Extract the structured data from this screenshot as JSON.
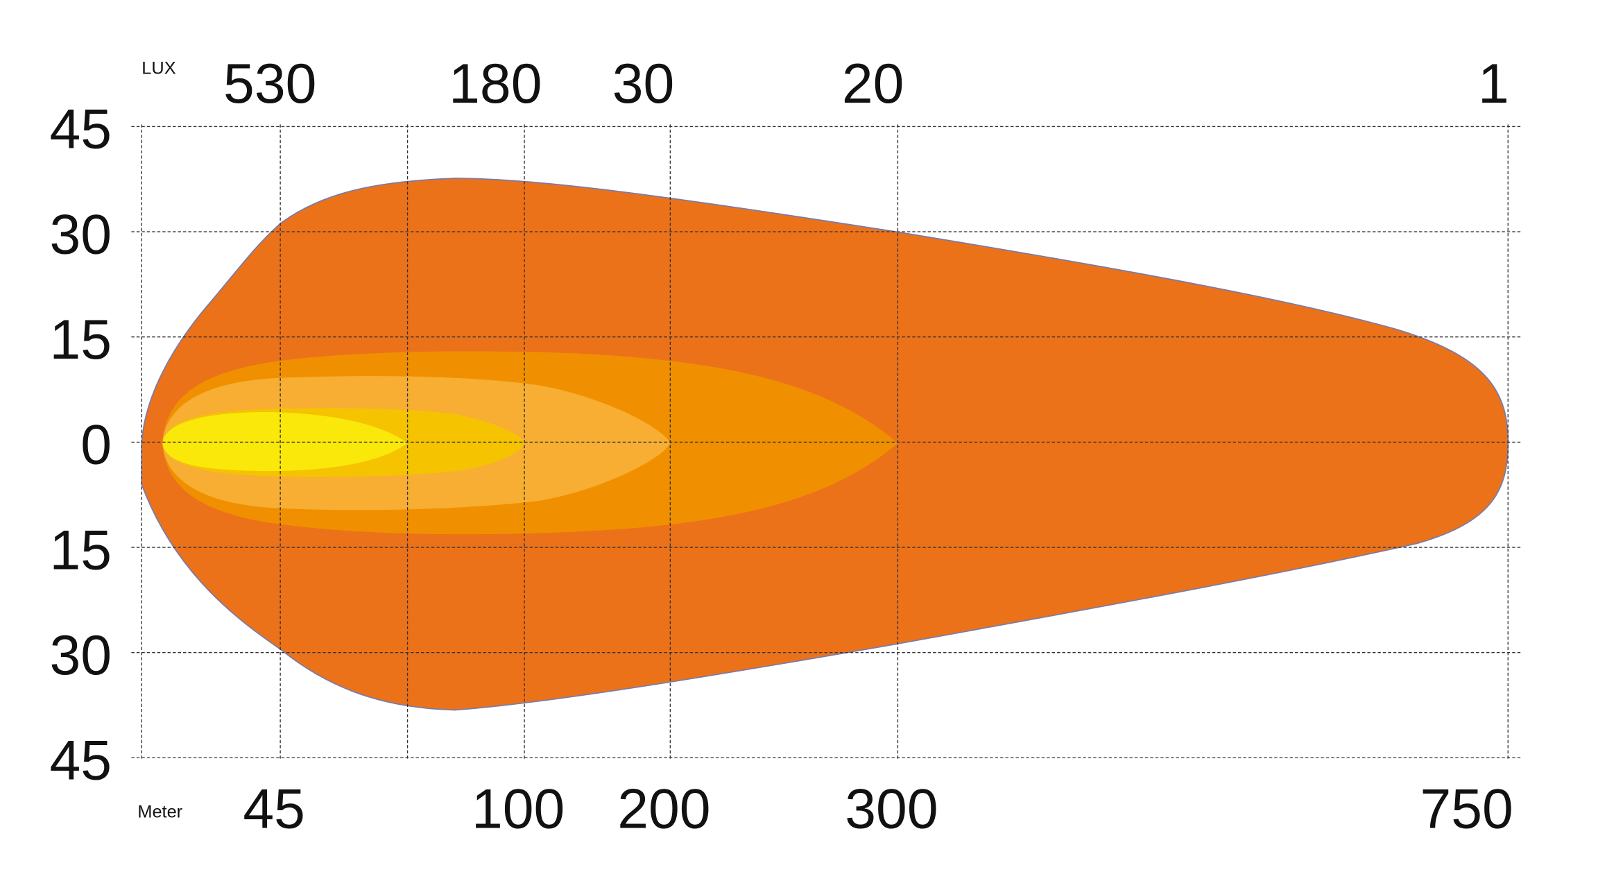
{
  "chart_data": {
    "type": "area",
    "title": "",
    "lux_label": "LUX",
    "meter_label": "Meter",
    "y_tick_labels": [
      "45",
      "30",
      "15",
      "0",
      "15",
      "30",
      "45"
    ],
    "y_values": [
      45,
      30,
      15,
      0,
      -15,
      -30,
      -45
    ],
    "ylim": [
      -45,
      45
    ],
    "x_ticks_meter": [
      45,
      100,
      200,
      300,
      750
    ],
    "x_tick_labels_meter": [
      "45",
      "100",
      "200",
      "300",
      "750"
    ],
    "lux_labels": [
      "530",
      "180",
      "30",
      "20",
      "1"
    ],
    "lux_label_positions_meter": [
      45,
      100,
      200,
      300,
      750
    ],
    "grid": true,
    "contours": [
      {
        "reach_m": 750,
        "max_half_width": 38,
        "color": "#EC721A"
      },
      {
        "reach_m": 300,
        "max_half_width": 13,
        "color": "#F09000"
      },
      {
        "reach_m": 200,
        "max_half_width": 10,
        "color": "#F7AE33"
      },
      {
        "reach_m": 100,
        "max_half_width": 5,
        "color": "#F5C300"
      },
      {
        "reach_m": 73,
        "max_half_width": 4,
        "color": "#FAE80A"
      }
    ],
    "outline_color": "#7B7BA6",
    "grid_color": "#333333"
  }
}
